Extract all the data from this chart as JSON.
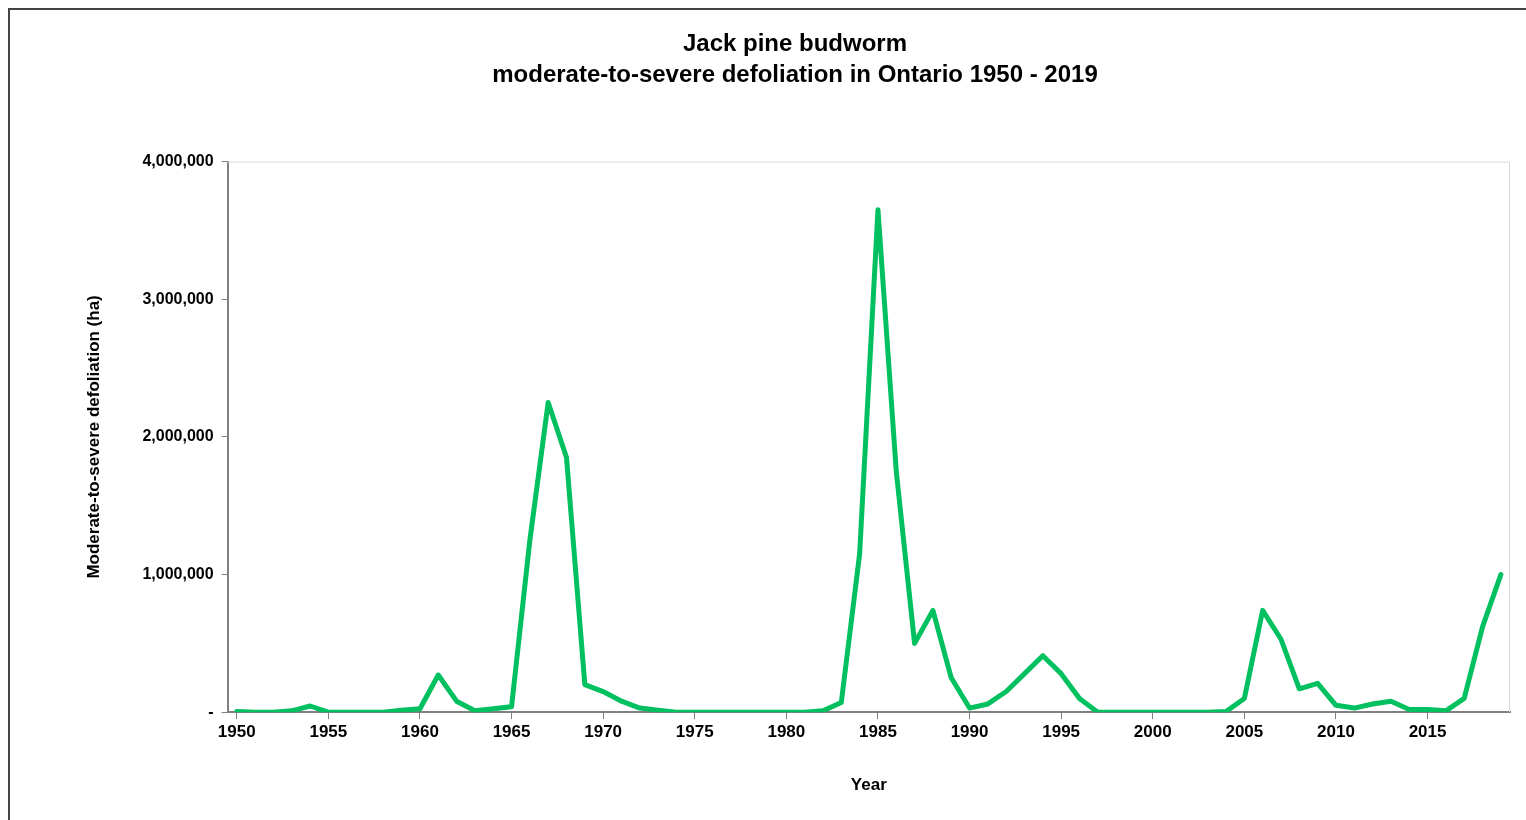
{
  "chart_data": {
    "type": "line",
    "title": "Jack pine budworm",
    "subtitle": "moderate-to-severe defoliation in Ontario 1950 - 2019",
    "xlabel": "Year",
    "ylabel": "Moderate-to-severe defoliation (ha)",
    "x": [
      1950,
      1951,
      1952,
      1953,
      1954,
      1955,
      1956,
      1957,
      1958,
      1959,
      1960,
      1961,
      1962,
      1963,
      1964,
      1965,
      1966,
      1967,
      1968,
      1969,
      1970,
      1971,
      1972,
      1973,
      1974,
      1975,
      1976,
      1977,
      1978,
      1979,
      1980,
      1981,
      1982,
      1983,
      1984,
      1985,
      1986,
      1987,
      1988,
      1989,
      1990,
      1991,
      1992,
      1993,
      1994,
      1995,
      1996,
      1997,
      1998,
      1999,
      2000,
      2001,
      2002,
      2003,
      2004,
      2005,
      2006,
      2007,
      2008,
      2009,
      2010,
      2011,
      2012,
      2013,
      2014,
      2015,
      2016,
      2017,
      2018,
      2019
    ],
    "series": [
      {
        "color": "#00c060",
        "values": [
          5000,
          0,
          0,
          10000,
          45000,
          0,
          0,
          0,
          0,
          15000,
          25000,
          270000,
          80000,
          10000,
          25000,
          40000,
          1250000,
          2250000,
          1850000,
          200000,
          150000,
          80000,
          30000,
          15000,
          0,
          0,
          0,
          0,
          0,
          0,
          0,
          0,
          10000,
          70000,
          1150000,
          3650000,
          1750000,
          500000,
          740000,
          250000,
          30000,
          60000,
          150000,
          280000,
          410000,
          280000,
          100000,
          0,
          0,
          0,
          0,
          0,
          0,
          0,
          5000,
          100000,
          740000,
          530000,
          170000,
          210000,
          50000,
          30000,
          60000,
          80000,
          20000,
          20000,
          10000,
          100000,
          620000,
          1000000
        ]
      }
    ],
    "xlim": [
      1949.5,
      2019.5
    ],
    "xticks": [
      1950,
      1955,
      1960,
      1965,
      1970,
      1975,
      1980,
      1985,
      1990,
      1995,
      2000,
      2005,
      2010,
      2015
    ],
    "ylim": [
      0,
      4000000
    ],
    "yticks": [
      {
        "value": 0,
        "label": "-"
      },
      {
        "value": 1000000,
        "label": "1,000,000"
      },
      {
        "value": 2000000,
        "label": "2,000,000"
      },
      {
        "value": 3000000,
        "label": "3,000,000"
      },
      {
        "value": 4000000,
        "label": "4,000,000"
      }
    ],
    "grid": false,
    "legend": false,
    "marker": "none",
    "line_style": "solid"
  }
}
